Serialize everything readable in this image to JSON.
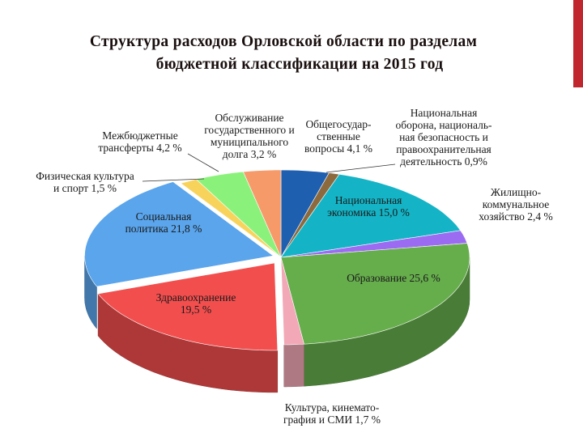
{
  "slide": {
    "title_line1": "Структура расходов Орловской области по разделам",
    "title_line2": "бюджетной  классификации на 2015 год",
    "accent_color": "#c0262d"
  },
  "chart_data": {
    "type": "pie",
    "style": "3d-exploded",
    "unit": "%",
    "slices": [
      {
        "label_lines": [
          "Общегосудар-",
          "ственные",
          "вопросы  4,1 %"
        ],
        "value": 4.1,
        "color": "#1f5fb0"
      },
      {
        "label_lines": [
          "Национальная",
          "оборона, националь-",
          "ная безопасность и",
          "правоохранительная",
          "деятельность  0,9%"
        ],
        "value": 0.9,
        "color": "#8c6a3e"
      },
      {
        "label_lines": [
          "Национальная",
          "экономика  15,0 %"
        ],
        "value": 15.0,
        "color": "#14b4c6"
      },
      {
        "label_lines": [
          "Жилищно-",
          "коммунальное",
          "хозяйство  2,4 %"
        ],
        "value": 2.4,
        "color": "#9b6cf2"
      },
      {
        "label_lines": [
          "Образование  25,6 %"
        ],
        "value": 25.6,
        "color": "#66ad4c"
      },
      {
        "label_lines": [
          "Культура, кинемато-",
          "графия и СМИ  1,7 %"
        ],
        "value": 1.7,
        "color": "#f2a8b6"
      },
      {
        "label_lines": [
          "Здравоохранение",
          "19,5 %"
        ],
        "value": 19.5,
        "color": "#f24e4e"
      },
      {
        "label_lines": [
          "Социальная",
          "политика  21,8 %"
        ],
        "value": 21.8,
        "color": "#5aa5ec"
      },
      {
        "label_lines": [
          "Физическая культура",
          "и спорт  1,5 %"
        ],
        "value": 1.5,
        "color": "#f8d35c"
      },
      {
        "label_lines": [
          "Межбюджетные",
          "трансферты  4,2 %"
        ],
        "value": 4.2,
        "color": "#8af27a"
      },
      {
        "label_lines": [
          "Обслуживание",
          "государственного и",
          "муниципального",
          "долга  3,2 %"
        ],
        "value": 3.2,
        "color": "#f79a6a"
      }
    ]
  }
}
